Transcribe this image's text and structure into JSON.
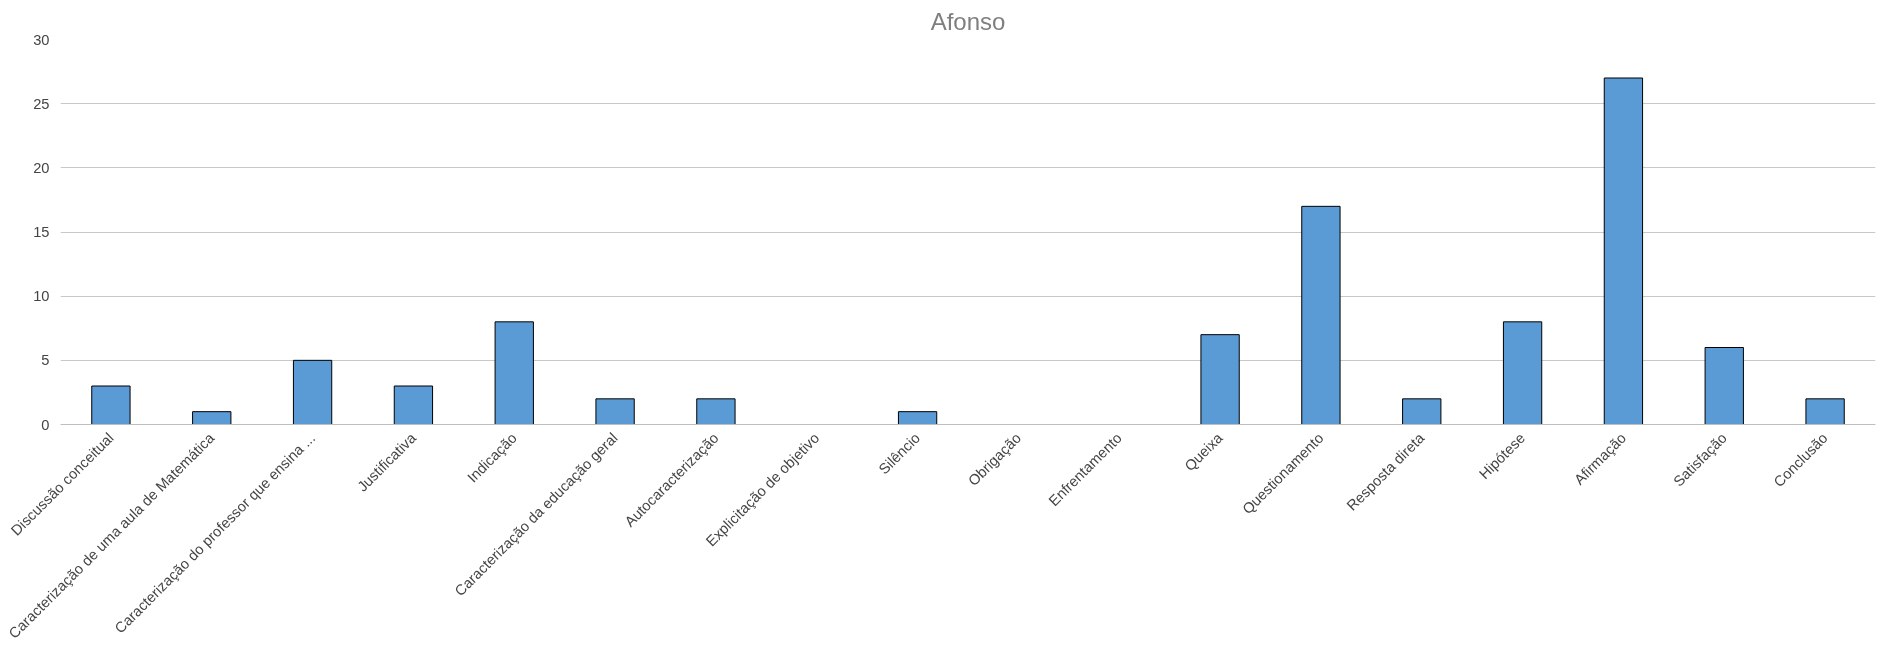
{
  "chart_data": {
    "type": "bar",
    "title": "Afonso",
    "categories": [
      "Discussão conceitual",
      "Caracterização de uma aula de Matemática",
      "Caracterização do professor que ensina ...",
      "Justificativa",
      "Indicação",
      "Caracterização da educação geral",
      "Autocaracterização",
      "Explicitação de objetivo",
      "Silêncio",
      "Obrigação",
      "Enfrentamento",
      "Queixa",
      "Questionamento",
      "Resposta direta",
      "Hipótese",
      "Afirmação",
      "Satisfação",
      "Conclusão"
    ],
    "values": [
      3,
      1,
      5,
      3,
      8,
      2,
      2,
      0,
      1,
      0,
      0,
      7,
      17,
      2,
      8,
      27,
      6,
      2
    ],
    "color": "#5b9bd5",
    "ylim": [
      0,
      30
    ],
    "yticks": [
      0,
      5,
      10,
      15,
      20,
      25,
      30
    ],
    "grid": "y"
  }
}
